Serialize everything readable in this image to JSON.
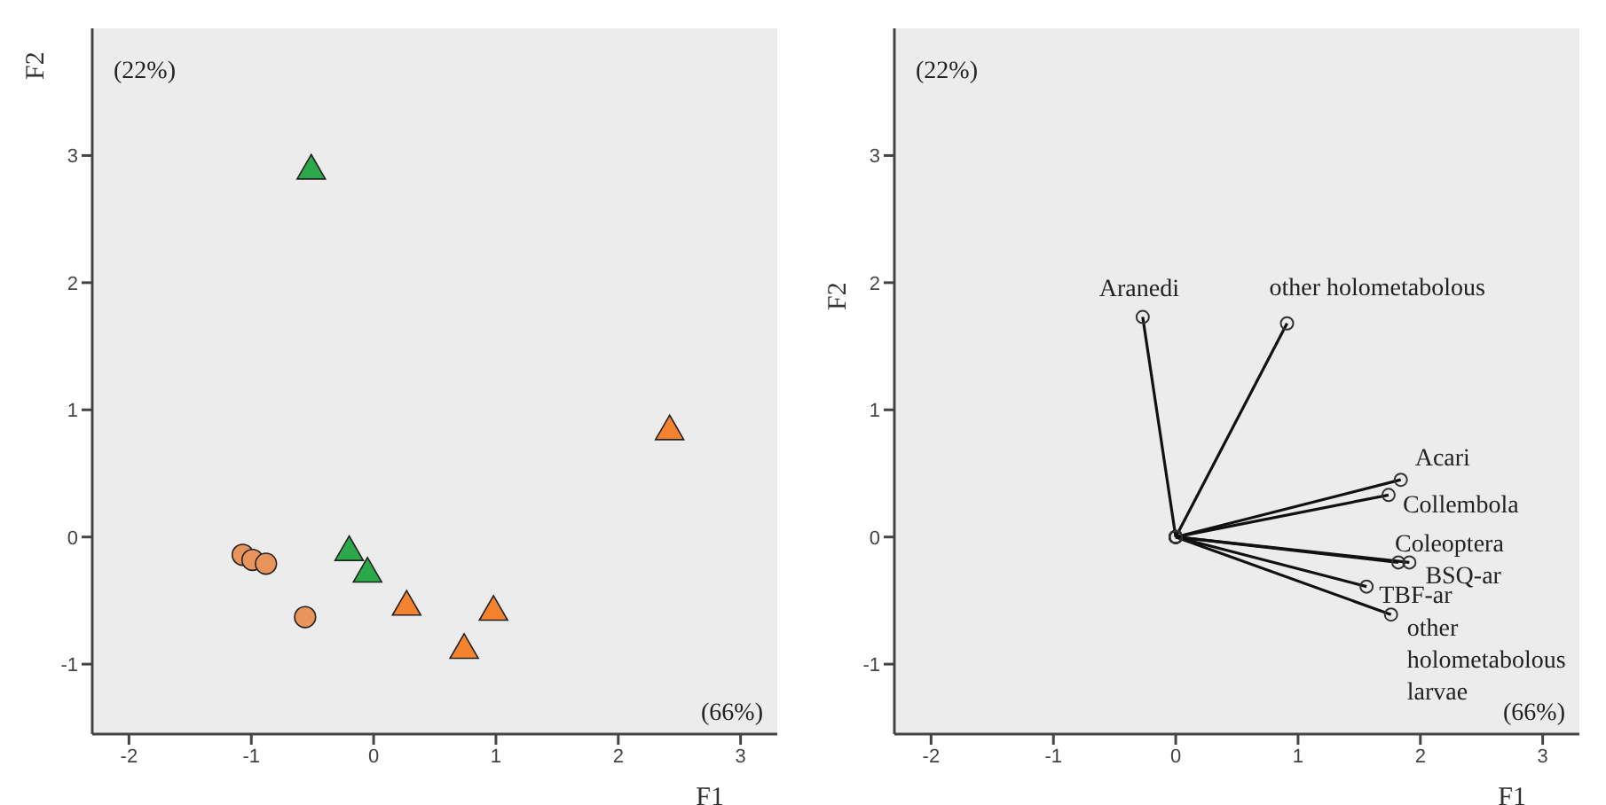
{
  "chart_data": [
    {
      "type": "scatter",
      "xlabel": "F1",
      "ylabel": "F2",
      "xlim": [
        -2.3,
        3.3
      ],
      "ylim": [
        -1.55,
        4.0
      ],
      "xticks": [
        -2,
        -1,
        0,
        1,
        2,
        3
      ],
      "yticks": [
        -1,
        0,
        1,
        2,
        3
      ],
      "grid": false,
      "legend": false,
      "annotations": [
        "(22%)",
        "(66%)"
      ],
      "series": [
        {
          "color": "#e8945a",
          "marker": "circle",
          "x": [
            -1.07,
            -0.99,
            -0.88,
            -0.56
          ],
          "values": [
            -0.14,
            -0.18,
            -0.21,
            -0.63
          ]
        },
        {
          "color": "#2aa84a",
          "marker": "triangle",
          "x": [
            -0.51,
            -0.2,
            -0.05
          ],
          "values": [
            2.88,
            -0.12,
            -0.29
          ]
        },
        {
          "color": "#f5822f",
          "marker": "triangle",
          "x": [
            2.42,
            0.27,
            0.98,
            0.74
          ],
          "values": [
            0.83,
            -0.55,
            -0.59,
            -0.89
          ]
        }
      ]
    },
    {
      "type": "line",
      "xlabel": "F1",
      "ylabel": "F2",
      "xlim": [
        -2.3,
        3.3
      ],
      "ylim": [
        -1.55,
        4.0
      ],
      "xticks": [
        -2,
        -1,
        0,
        1,
        2,
        3
      ],
      "yticks": [
        -1,
        0,
        1,
        2,
        3
      ],
      "grid": false,
      "legend": false,
      "marker": "circle",
      "annotations": [
        "(22%)",
        "(66%)"
      ],
      "series": [
        {
          "name": "Aranedi",
          "color": "#111111",
          "x": [
            0,
            -0.27
          ],
          "values": [
            0,
            1.73
          ]
        },
        {
          "name": "other holometabolous",
          "color": "#111111",
          "x": [
            0,
            0.91
          ],
          "values": [
            0,
            1.68
          ]
        },
        {
          "name": "Acari",
          "color": "#111111",
          "x": [
            0,
            1.84
          ],
          "values": [
            0,
            0.45
          ]
        },
        {
          "name": "Collembola",
          "color": "#111111",
          "x": [
            0,
            1.74
          ],
          "values": [
            0,
            0.33
          ]
        },
        {
          "name": "Coleoptera",
          "color": "#111111",
          "x": [
            0,
            1.82
          ],
          "values": [
            0,
            -0.2
          ]
        },
        {
          "name": "BSQ-ar",
          "color": "#111111",
          "x": [
            0,
            1.91
          ],
          "values": [
            0,
            -0.2
          ]
        },
        {
          "name": "TBF-ar",
          "color": "#111111",
          "x": [
            0,
            1.56
          ],
          "values": [
            0,
            -0.39
          ]
        },
        {
          "name": "other holometabolous larvae",
          "color": "#111111",
          "x": [
            0,
            1.76
          ],
          "values": [
            0,
            -0.61
          ]
        }
      ]
    }
  ]
}
